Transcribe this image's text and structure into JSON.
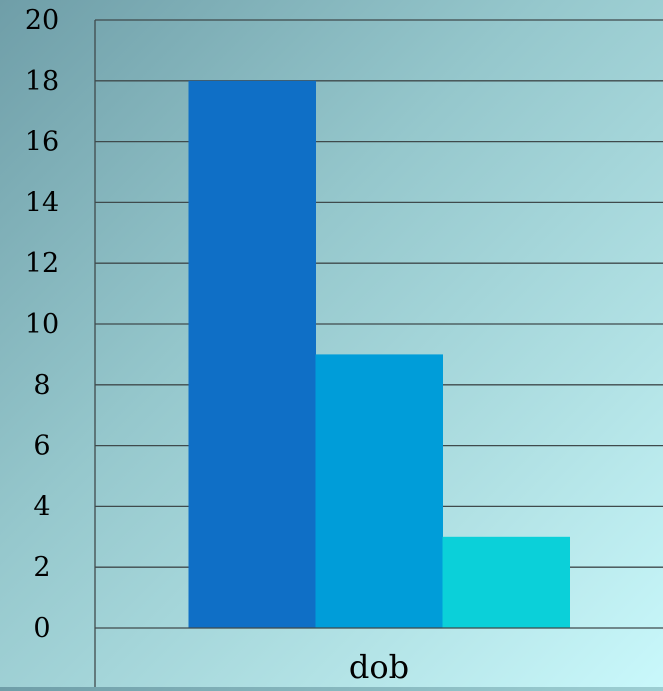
{
  "chart_data": {
    "type": "bar",
    "categories": [
      "dob"
    ],
    "series": [
      {
        "values": [
          18
        ],
        "color": "#0f6fc6"
      },
      {
        "values": [
          9
        ],
        "color": "#009dd9"
      },
      {
        "values": [
          3
        ],
        "color": "#0bd0d9"
      }
    ],
    "y_ticks": [
      "0",
      "2",
      "4",
      "6",
      "8",
      "10",
      "12",
      "14",
      "16",
      "18",
      "20"
    ],
    "ylim": [
      0,
      20
    ],
    "grid": true,
    "legend": "none"
  },
  "colors": {
    "gridline": "#3f4a4c",
    "text": "#000000"
  }
}
